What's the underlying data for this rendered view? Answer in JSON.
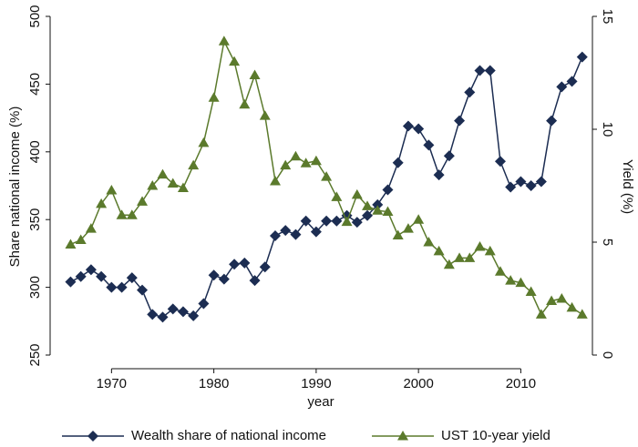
{
  "chart_data": {
    "type": "line",
    "x_label": "year",
    "y_label": "Share national income (%)",
    "y2_label": "Yield (%)",
    "x": [
      1966,
      1967,
      1968,
      1969,
      1970,
      1971,
      1972,
      1973,
      1974,
      1975,
      1976,
      1977,
      1978,
      1979,
      1980,
      1981,
      1982,
      1983,
      1984,
      1985,
      1986,
      1987,
      1988,
      1989,
      1990,
      1991,
      1992,
      1993,
      1994,
      1995,
      1996,
      1997,
      1998,
      1999,
      2000,
      2001,
      2002,
      2003,
      2004,
      2005,
      2006,
      2007,
      2008,
      2009,
      2010,
      2011,
      2012,
      2013,
      2014,
      2015,
      2016
    ],
    "xlim": [
      1964,
      2017
    ],
    "xticks": [
      1970,
      1980,
      1990,
      2000,
      2010
    ],
    "ylim": [
      250,
      500
    ],
    "yticks": [
      250,
      300,
      350,
      400,
      450,
      500
    ],
    "y2lim": [
      0,
      15
    ],
    "y2ticks": [
      0,
      5,
      10,
      15
    ],
    "legend": "bottom",
    "series": [
      {
        "name": "Wealth share of national income",
        "color": "#1c2d52",
        "marker": "diamond",
        "values": [
          304,
          308,
          313,
          308,
          300,
          300,
          307,
          298,
          280,
          278,
          284,
          282,
          279,
          288,
          309,
          306,
          317,
          318,
          305,
          315,
          338,
          342,
          339,
          349,
          341,
          349,
          349,
          353,
          348,
          353,
          361,
          372,
          392,
          419,
          417,
          405,
          383,
          397,
          423,
          444,
          460,
          460,
          393,
          374,
          378,
          375,
          378,
          423,
          448,
          452,
          470
        ]
      },
      {
        "name": "UST 10-year yield",
        "color": "#5b7a2c",
        "marker": "triangle",
        "axis": "y2",
        "values": [
          4.9,
          5.1,
          5.6,
          6.7,
          7.3,
          6.2,
          6.2,
          6.8,
          7.5,
          8.0,
          7.6,
          7.4,
          8.4,
          9.4,
          11.4,
          13.9,
          13.0,
          11.1,
          12.4,
          10.6,
          7.7,
          8.4,
          8.8,
          8.5,
          8.6,
          7.9,
          7.0,
          5.9,
          7.1,
          6.6,
          6.4,
          6.35,
          5.3,
          5.6,
          6.0,
          5.0,
          4.6,
          4.0,
          4.3,
          4.3,
          4.8,
          4.6,
          3.7,
          3.3,
          3.2,
          2.8,
          1.8,
          2.4,
          2.5,
          2.1,
          1.8
        ]
      }
    ]
  }
}
